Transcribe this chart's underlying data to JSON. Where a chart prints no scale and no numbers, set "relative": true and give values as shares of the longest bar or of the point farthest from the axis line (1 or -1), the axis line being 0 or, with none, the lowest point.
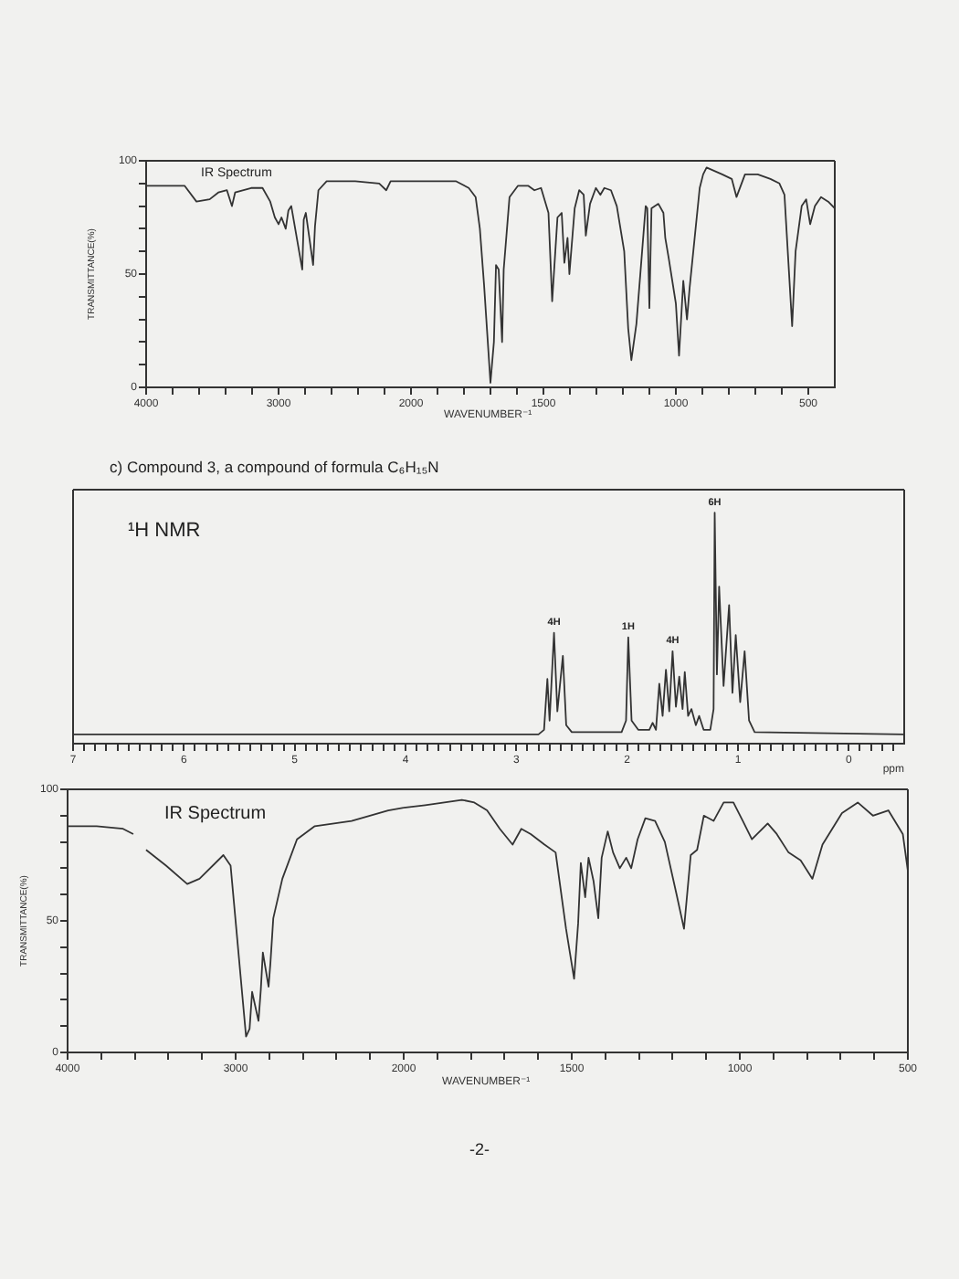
{
  "chart_data": [
    {
      "type": "line",
      "title": "IR Spectrum",
      "ylabel": "TRANSMITTANCE(%)",
      "x": [
        4000,
        3780,
        3710,
        3620,
        3520,
        3455,
        3390,
        3352,
        3328,
        3207,
        3121,
        3063,
        3028,
        3000,
        2978,
        2946,
        2926,
        2904,
        2821,
        2810,
        2794,
        2739,
        2725,
        2699,
        2637,
        2421,
        2240,
        2187,
        2154,
        2000
      ],
      "values": [
        89,
        89,
        89,
        82,
        83,
        86,
        87,
        80,
        86,
        88,
        88,
        82,
        75,
        72,
        75,
        70,
        78,
        80,
        52,
        74,
        77,
        54,
        71,
        87,
        91,
        91,
        90,
        87,
        91,
        91
      ],
      "color": "#333333",
      "marker": "none",
      "xlim": [
        4000,
        2000
      ],
      "xticks": [
        4000,
        {
          "value": 3800,
          "label": null
        },
        {
          "value": 3600,
          "label": null
        },
        {
          "value": 3400,
          "label": null
        },
        {
          "value": 3200,
          "label": null
        },
        3000,
        {
          "value": 2800,
          "label": null
        },
        {
          "value": 2600,
          "label": null
        },
        {
          "value": 2400,
          "label": null
        },
        {
          "value": 2200,
          "label": null
        },
        2000
      ],
      "ylim": [
        0,
        100
      ],
      "yticks": [
        0,
        {
          "value": 10,
          "label": null
        },
        {
          "value": 20,
          "label": null
        },
        {
          "value": 30,
          "label": null
        },
        {
          "value": 40,
          "label": null
        },
        50,
        {
          "value": 60,
          "label": null
        },
        {
          "value": 70,
          "label": null
        },
        {
          "value": 80,
          "label": null
        },
        {
          "value": 90,
          "label": null
        },
        100
      ]
    },
    {
      "type": "line",
      "xlabel": "WAVENUMBER⁻¹",
      "x": [
        2000,
        1955,
        1831,
        1782,
        1756,
        1740,
        1724,
        1700,
        1687,
        1679,
        1669,
        1656,
        1650,
        1628,
        1596,
        1558,
        1534,
        1509,
        1481,
        1467,
        1447,
        1431,
        1421,
        1409,
        1402,
        1382,
        1365,
        1348,
        1340,
        1324,
        1302,
        1285,
        1270,
        1245,
        1223,
        1195,
        1180,
        1168,
        1149,
        1114,
        1108,
        1100,
        1092,
        1066,
        1047,
        1040,
        1027,
        1000,
        988,
        972,
        958,
        948,
        910,
        897,
        884,
        825,
        789,
        771,
        739,
        691,
        643,
        609,
        590,
        575,
        561,
        548,
        525,
        508,
        493,
        475,
        452,
        425,
        400
      ],
      "values": [
        91,
        91,
        91,
        88,
        84,
        70,
        45,
        2,
        20,
        54,
        52,
        20,
        52,
        84,
        89,
        89,
        87,
        88,
        77,
        38,
        75,
        77,
        55,
        66,
        50,
        79,
        87,
        85,
        67,
        81,
        88,
        85,
        88,
        87,
        80,
        60,
        26,
        12,
        28,
        80,
        79,
        35,
        79,
        81,
        77,
        66,
        57,
        37,
        14,
        47,
        30,
        44,
        88,
        94,
        97,
        94,
        92,
        84,
        94,
        94,
        92,
        90,
        85,
        55,
        27,
        60,
        80,
        83,
        72,
        80,
        84,
        82,
        79
      ],
      "color": "#333333",
      "marker": "none",
      "xlim": [
        2000,
        400
      ],
      "xticks": [
        {
          "value": 1900,
          "label": null
        },
        {
          "value": 1800,
          "label": null
        },
        {
          "value": 1700,
          "label": null
        },
        {
          "value": 1600,
          "label": null
        },
        1500,
        {
          "value": 1400,
          "label": null
        },
        {
          "value": 1300,
          "label": null
        },
        {
          "value": 1200,
          "label": null
        },
        {
          "value": 1100,
          "label": null
        },
        1000,
        {
          "value": 900,
          "label": null
        },
        {
          "value": 800,
          "label": null
        },
        {
          "value": 700,
          "label": null
        },
        {
          "value": 600,
          "label": null
        },
        500
      ],
      "ylim": [
        0,
        100
      ],
      "tick_labels": "x"
    },
    {
      "type": "line",
      "title": "c) Compound 3, a compound of formula C₆H₁₅N",
      "subtitle": "¹H NMR",
      "xlabel": "ppm",
      "x": [
        7,
        2.8,
        2.75,
        2.72,
        2.7,
        2.66,
        2.63,
        2.58,
        2.55,
        2.5,
        2.05,
        2.01,
        1.99,
        1.96,
        1.9,
        1.8,
        1.77,
        1.74,
        1.71,
        1.68,
        1.65,
        1.62,
        1.59,
        1.56,
        1.53,
        1.5,
        1.48,
        1.45,
        1.42,
        1.38,
        1.35,
        1.31,
        1.25,
        1.22,
        1.21,
        1.19,
        1.17,
        1.13,
        1.08,
        1.05,
        1.02,
        0.98,
        0.94,
        0.9,
        0.85,
        -0.5
      ],
      "values": [
        0.04,
        0.04,
        0.06,
        0.28,
        0.1,
        0.48,
        0.14,
        0.38,
        0.08,
        0.05,
        0.05,
        0.1,
        0.46,
        0.1,
        0.06,
        0.06,
        0.09,
        0.06,
        0.26,
        0.12,
        0.32,
        0.14,
        0.4,
        0.16,
        0.29,
        0.15,
        0.31,
        0.12,
        0.15,
        0.08,
        0.12,
        0.06,
        0.06,
        0.15,
        1,
        0.3,
        0.68,
        0.25,
        0.6,
        0.22,
        0.47,
        0.18,
        0.4,
        0.1,
        0.05,
        0.04
      ],
      "color": "#333333",
      "marker": "none",
      "relative": true,
      "xlim": [
        7,
        -0.5
      ],
      "xticks": [
        7,
        {
          "value": 6.9,
          "label": null
        },
        {
          "value": 6.8,
          "label": null
        },
        {
          "value": 6.7,
          "label": null
        },
        {
          "value": 6.6,
          "label": null
        },
        {
          "value": 6.5,
          "label": null
        },
        {
          "value": 6.4,
          "label": null
        },
        {
          "value": 6.3,
          "label": null
        },
        {
          "value": 6.2,
          "label": null
        },
        {
          "value": 6.1,
          "label": null
        },
        6,
        {
          "value": 5.9,
          "label": null
        },
        {
          "value": 5.8,
          "label": null
        },
        {
          "value": 5.7,
          "label": null
        },
        {
          "value": 5.6,
          "label": null
        },
        {
          "value": 5.5,
          "label": null
        },
        {
          "value": 5.4,
          "label": null
        },
        {
          "value": 5.3,
          "label": null
        },
        {
          "value": 5.2,
          "label": null
        },
        {
          "value": 5.1,
          "label": null
        },
        5,
        {
          "value": 4.9,
          "label": null
        },
        {
          "value": 4.8,
          "label": null
        },
        {
          "value": 4.7,
          "label": null
        },
        {
          "value": 4.6,
          "label": null
        },
        {
          "value": 4.5,
          "label": null
        },
        {
          "value": 4.4,
          "label": null
        },
        {
          "value": 4.3,
          "label": null
        },
        {
          "value": 4.2,
          "label": null
        },
        {
          "value": 4.1,
          "label": null
        },
        4,
        {
          "value": 3.9,
          "label": null
        },
        {
          "value": 3.8,
          "label": null
        },
        {
          "value": 3.7,
          "label": null
        },
        {
          "value": 3.6,
          "label": null
        },
        {
          "value": 3.5,
          "label": null
        },
        {
          "value": 3.4,
          "label": null
        },
        {
          "value": 3.3,
          "label": null
        },
        {
          "value": 3.2,
          "label": null
        },
        {
          "value": 3.1,
          "label": null
        },
        3,
        {
          "value": 2.9,
          "label": null
        },
        {
          "value": 2.8,
          "label": null
        },
        {
          "value": 2.7,
          "label": null
        },
        {
          "value": 2.6,
          "label": null
        },
        {
          "value": 2.5,
          "label": null
        },
        {
          "value": 2.4,
          "label": null
        },
        {
          "value": 2.3,
          "label": null
        },
        {
          "value": 2.2,
          "label": null
        },
        {
          "value": 2.1,
          "label": null
        },
        2,
        {
          "value": 1.9,
          "label": null
        },
        {
          "value": 1.8,
          "label": null
        },
        {
          "value": 1.7,
          "label": null
        },
        {
          "value": 1.6,
          "label": null
        },
        {
          "value": 1.5,
          "label": null
        },
        {
          "value": 1.4,
          "label": null
        },
        {
          "value": 1.3,
          "label": null
        },
        {
          "value": 1.2,
          "label": null
        },
        {
          "value": 1.1,
          "label": null
        },
        1,
        {
          "value": 0.9,
          "label": null
        },
        {
          "value": 0.8,
          "label": null
        },
        {
          "value": 0.7,
          "label": null
        },
        {
          "value": 0.6,
          "label": null
        },
        {
          "value": 0.5,
          "label": null
        },
        {
          "value": 0.4,
          "label": null
        },
        {
          "value": 0.3,
          "label": null
        },
        {
          "value": 0.2,
          "label": null
        },
        {
          "value": 0.1,
          "label": null
        },
        0,
        {
          "value": -0.1,
          "label": null
        },
        {
          "value": -0.2,
          "label": null
        },
        {
          "value": -0.3,
          "label": null
        },
        {
          "value": -0.4,
          "label": null
        }
      ],
      "annotations": [
        {
          "text": "4H",
          "x": 2.66,
          "y": 0.48
        },
        {
          "text": "1H",
          "x": 1.99,
          "y": 0.46
        },
        {
          "text": "4H",
          "x": 1.59,
          "y": 0.4
        },
        {
          "text": "6H",
          "x": 1.21,
          "y": 1
        }
      ]
    },
    {
      "type": "line",
      "title": "IR Spectrum",
      "ylabel": "TRANSMITTANCE(%)",
      "x": [
        4000,
        3827,
        3670,
        3609,
        3590,
        3533,
        3414,
        3288,
        3215,
        3073,
        3030,
        2938,
        2917,
        2902,
        2864,
        2850,
        2838,
        2804,
        2793,
        2776,
        2722,
        2635,
        2529,
        2310,
        2092,
        2000
      ],
      "values": [
        86,
        86,
        85,
        83,
        null,
        77,
        71,
        64,
        66,
        75,
        71,
        6,
        9,
        23,
        12,
        24,
        38,
        25,
        34,
        51,
        66,
        81,
        86,
        88,
        92,
        93
      ],
      "color": "#333333",
      "marker": "none",
      "xlim": [
        4000,
        2000
      ],
      "xticks": [
        4000,
        {
          "value": 3800,
          "label": null
        },
        {
          "value": 3600,
          "label": null
        },
        {
          "value": 3400,
          "label": null
        },
        {
          "value": 3200,
          "label": null
        },
        3000,
        {
          "value": 2800,
          "label": null
        },
        {
          "value": 2600,
          "label": null
        },
        {
          "value": 2400,
          "label": null
        },
        {
          "value": 2200,
          "label": null
        },
        2000
      ],
      "ylim": [
        0,
        100
      ],
      "yticks": [
        0,
        {
          "value": 10,
          "label": null
        },
        {
          "value": 20,
          "label": null
        },
        {
          "value": 30,
          "label": null
        },
        {
          "value": 40,
          "label": null
        },
        50,
        {
          "value": 60,
          "label": null
        },
        {
          "value": 70,
          "label": null
        },
        {
          "value": 80,
          "label": null
        },
        {
          "value": 90,
          "label": null
        },
        100
      ],
      "annotations": [
        "-2-"
      ]
    },
    {
      "type": "line",
      "xlabel": "WAVENUMBER⁻¹",
      "x": [
        2000,
        1936,
        1827,
        1790,
        1752,
        1714,
        1676,
        1650,
        1622,
        1581,
        1548,
        1517,
        1493,
        1481,
        1473,
        1460,
        1450,
        1435,
        1421,
        1411,
        1393,
        1377,
        1357,
        1338,
        1323,
        1304,
        1281,
        1252,
        1223,
        1188,
        1166,
        1146,
        1127,
        1107,
        1078,
        1048,
        1019,
        991,
        964,
        917,
        890,
        855,
        819,
        784,
        754,
        696,
        649,
        604,
        558,
        515,
        500
      ],
      "values": [
        93,
        94,
        96,
        95,
        92,
        85,
        79,
        85,
        83,
        79,
        76,
        47,
        28,
        49,
        72,
        59,
        74,
        65,
        51,
        74,
        84,
        76,
        70,
        74,
        70,
        81,
        89,
        88,
        80,
        60,
        47,
        75,
        77,
        90,
        88,
        95,
        95,
        88,
        81,
        87,
        83,
        76,
        73,
        66,
        79,
        91,
        95,
        90,
        92,
        83,
        69
      ],
      "color": "#333333",
      "marker": "none",
      "xlim": [
        2000,
        500
      ],
      "xticks": [
        {
          "value": 1900,
          "label": null
        },
        {
          "value": 1800,
          "label": null
        },
        {
          "value": 1700,
          "label": null
        },
        {
          "value": 1600,
          "label": null
        },
        1500,
        {
          "value": 1400,
          "label": null
        },
        {
          "value": 1300,
          "label": null
        },
        {
          "value": 1200,
          "label": null
        },
        {
          "value": 1100,
          "label": null
        },
        1000,
        {
          "value": 900,
          "label": null
        },
        {
          "value": 800,
          "label": null
        },
        {
          "value": 700,
          "label": null
        },
        {
          "value": 600,
          "label": null
        },
        500
      ],
      "ylim": [
        0,
        100
      ],
      "tick_labels": "x"
    }
  ]
}
